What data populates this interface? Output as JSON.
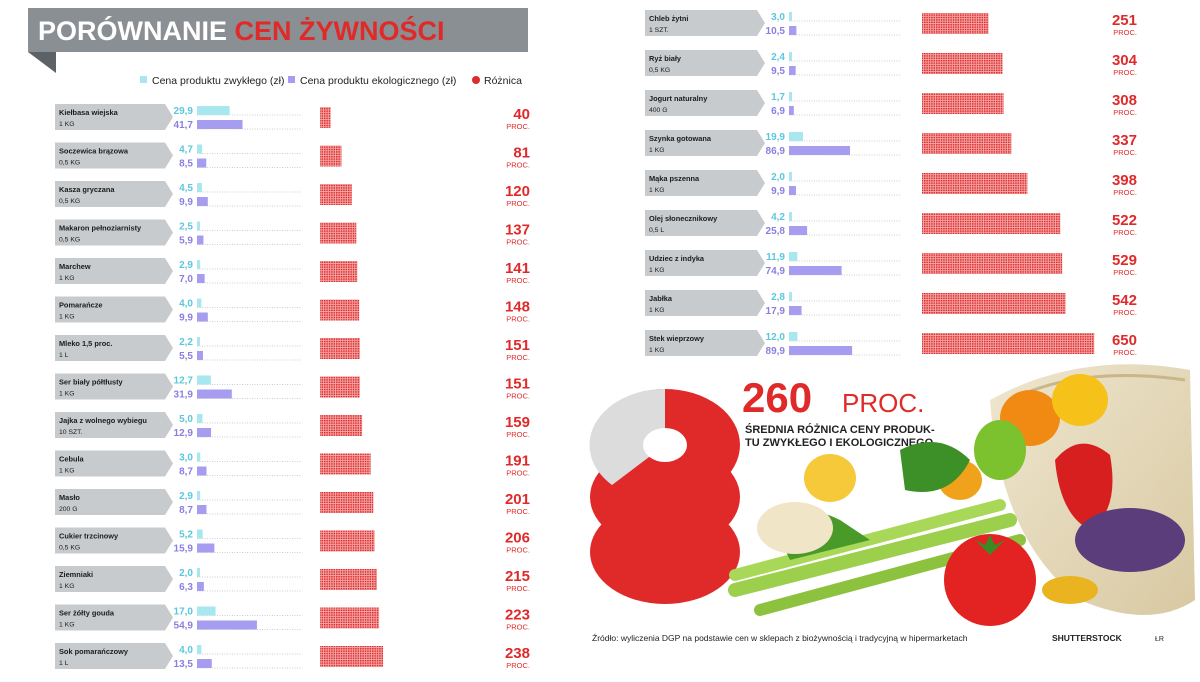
{
  "chart_data": {
    "type": "bar",
    "title": [
      "PORÓWNANIE ",
      "CEN ŻYWNOŚCI"
    ],
    "legend": [
      "Cena produktu zwykłego (zł)",
      "Cena produktu ekologicznego (zł)",
      "Różnica"
    ],
    "unit": "PROC.",
    "series_colors": {
      "regular": "#a8e6f0",
      "eco": "#a79df0",
      "diff": "#e02a2a"
    },
    "series": [
      {
        "name": "Cena produktu zwykłego (zł)",
        "key": "regular"
      },
      {
        "name": "Cena produktu ekologicznego (zł)",
        "key": "eco"
      },
      {
        "name": "Różnica",
        "key": "diff"
      }
    ],
    "items": [
      {
        "name": "Kiełbasa wiejska",
        "qty": "1 KG",
        "regular": "29,9",
        "eco": "41,7",
        "diff": "40"
      },
      {
        "name": "Soczewica brązowa",
        "qty": "0,5 KG",
        "regular": "4,7",
        "eco": "8,5",
        "diff": "81"
      },
      {
        "name": "Kasza gryczana",
        "qty": "0,5 KG",
        "regular": "4,5",
        "eco": "9,9",
        "diff": "120"
      },
      {
        "name": "Makaron pełnoziarnisty",
        "qty": "0,5 KG",
        "regular": "2,5",
        "eco": "5,9",
        "diff": "137"
      },
      {
        "name": "Marchew",
        "qty": "1 KG",
        "regular": "2,9",
        "eco": "7,0",
        "diff": "141"
      },
      {
        "name": "Pomarańcze",
        "qty": "1 KG",
        "regular": "4,0",
        "eco": "9,9",
        "diff": "148"
      },
      {
        "name": "Mleko 1,5 proc.",
        "qty": "1 L",
        "regular": "2,2",
        "eco": "5,5",
        "diff": "151"
      },
      {
        "name": "Ser biały półtłusty",
        "qty": "1 KG",
        "regular": "12,7",
        "eco": "31,9",
        "diff": "151"
      },
      {
        "name": "Jajka z wolnego wybiegu",
        "qty": "10 SZT.",
        "regular": "5,0",
        "eco": "12,9",
        "diff": "159"
      },
      {
        "name": "Cebula",
        "qty": "1 KG",
        "regular": "3,0",
        "eco": "8,7",
        "diff": "191"
      },
      {
        "name": "Masło",
        "qty": "200 G",
        "regular": "2,9",
        "eco": "8,7",
        "diff": "201"
      },
      {
        "name": "Cukier trzcinowy",
        "qty": "0,5 KG",
        "regular": "5,2",
        "eco": "15,9",
        "diff": "206"
      },
      {
        "name": "Ziemniaki",
        "qty": "1 KG",
        "regular": "2,0",
        "eco": "6,3",
        "diff": "215"
      },
      {
        "name": "Ser żółty gouda",
        "qty": "1 KG",
        "regular": "17,0",
        "eco": "54,9",
        "diff": "223"
      },
      {
        "name": "Sok pomarańczowy",
        "qty": "1 L",
        "regular": "4,0",
        "eco": "13,5",
        "diff": "238"
      },
      {
        "name": "Chleb żytni",
        "qty": "1 SZT.",
        "regular": "3,0",
        "eco": "10,5",
        "diff": "251"
      },
      {
        "name": "Ryż biały",
        "qty": "0,5 KG",
        "regular": "2,4",
        "eco": "9,5",
        "diff": "304"
      },
      {
        "name": "Jogurt naturalny",
        "qty": "400 G",
        "regular": "1,7",
        "eco": "6,9",
        "diff": "308"
      },
      {
        "name": "Szynka gotowana",
        "qty": "1 KG",
        "regular": "19,9",
        "eco": "86,9",
        "diff": "337"
      },
      {
        "name": "Mąka pszenna",
        "qty": "1 KG",
        "regular": "2,0",
        "eco": "9,9",
        "diff": "398"
      },
      {
        "name": "Olej słonecznikowy",
        "qty": "0,5 L",
        "regular": "4,2",
        "eco": "25,8",
        "diff": "522"
      },
      {
        "name": "Udziec z indyka",
        "qty": "1 KG",
        "regular": "11,9",
        "eco": "74,9",
        "diff": "529"
      },
      {
        "name": "Jabłka",
        "qty": "1 KG",
        "regular": "2,8",
        "eco": "17,9",
        "diff": "542"
      },
      {
        "name": "Stek wieprzowy",
        "qty": "1 KG",
        "regular": "12,0",
        "eco": "89,9",
        "diff": "650"
      }
    ],
    "average": {
      "value": "260",
      "unit": "PROC.",
      "caption": [
        "ŚREDNIA RÓŻNICA CENY PRODUK-",
        "TU ZWYKŁEGO I EKOLOGICZNEGO"
      ]
    },
    "source": "Źródło: wyliczenia DGP na podstawie cen w sklepach z biożywnością i tradycyjną w hipermarketach",
    "credit": "SHUTTERSTOCK",
    "signature": "ŁR"
  }
}
